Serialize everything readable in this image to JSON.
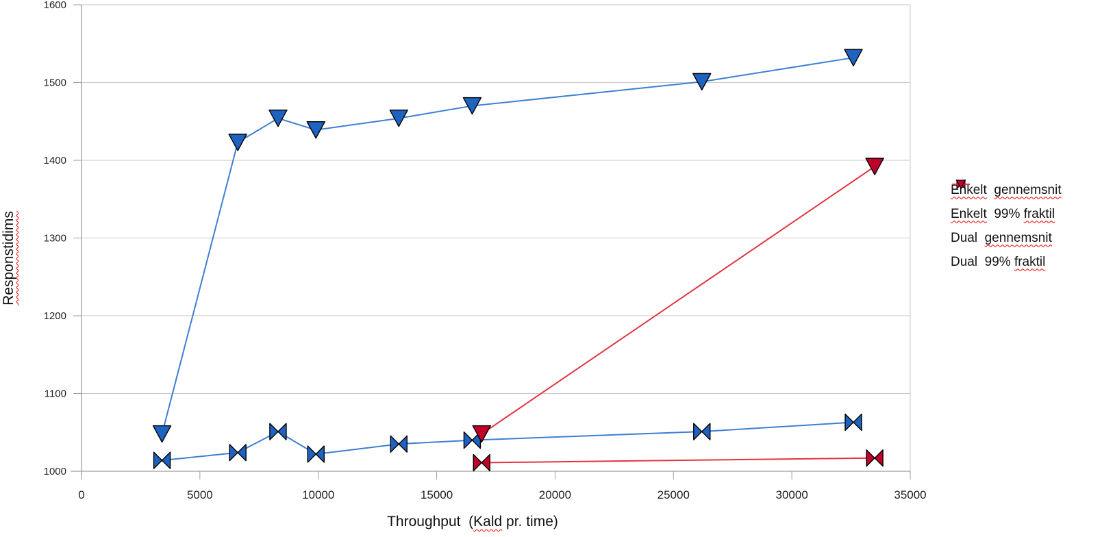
{
  "chart_data": {
    "type": "line",
    "title": "",
    "xlabel": "Throughput  (Kald pr. time)",
    "ylabel": "Responstidims",
    "xlabel_segments": [
      {
        "text": "Throughput  (",
        "wavy": false
      },
      {
        "text": "Kald",
        "wavy": true
      },
      {
        "text": " pr. time)",
        "wavy": false
      }
    ],
    "ylabel_segments": [
      {
        "text": "Responstidims",
        "wavy": true
      }
    ],
    "xlim": [
      0,
      35000
    ],
    "ylim": [
      1000,
      1600
    ],
    "x_ticks": [
      0,
      5000,
      10000,
      15000,
      20000,
      25000,
      30000,
      35000
    ],
    "y_ticks": [
      1000,
      1100,
      1200,
      1300,
      1400,
      1500,
      1600
    ],
    "grid": "horizontal",
    "legend_position": "right",
    "series": [
      {
        "name": "Enkelt gennemsnit",
        "label_segments": [
          {
            "text": "Enkelt",
            "wavy": true
          },
          {
            "text": "  ",
            "wavy": false
          },
          {
            "text": "gennemsnit",
            "wavy": true
          }
        ],
        "marker": "bowtie",
        "marker_color": "#1F63C1",
        "line_color": "#3E7FD2",
        "x": [
          3400,
          6600,
          8300,
          9900,
          13400,
          16500,
          26200,
          32600
        ],
        "y": [
          1014,
          1024,
          1051,
          1022,
          1035,
          1040,
          1051,
          1063
        ]
      },
      {
        "name": "Enkelt 99% fraktil",
        "label_segments": [
          {
            "text": "Enkelt",
            "wavy": true
          },
          {
            "text": "  99% ",
            "wavy": false
          },
          {
            "text": "fraktil",
            "wavy": true
          }
        ],
        "marker": "triangle-down",
        "marker_color": "#1F63C1",
        "line_color": "#3E7FD2",
        "x": [
          3400,
          6600,
          8300,
          9900,
          13400,
          16500,
          26200,
          32600
        ],
        "y": [
          1048,
          1423,
          1454,
          1439,
          1454,
          1470,
          1501,
          1532
        ]
      },
      {
        "name": "Dual gennemsnit",
        "label_segments": [
          {
            "text": "Dual",
            "wavy": false
          },
          {
            "text": "  ",
            "wavy": false
          },
          {
            "text": "gennemsnit",
            "wavy": true
          }
        ],
        "marker": "bowtie",
        "marker_color": "#C00028",
        "line_color": "#E4333F",
        "x": [
          16900,
          33500
        ],
        "y": [
          1011,
          1017
        ]
      },
      {
        "name": "Dual 99% fraktil",
        "label_segments": [
          {
            "text": "Dual",
            "wavy": false
          },
          {
            "text": "  99% ",
            "wavy": false
          },
          {
            "text": "fraktil",
            "wavy": true
          }
        ],
        "marker": "triangle-down",
        "marker_color": "#C00028",
        "line_color": "#E4333F",
        "x": [
          16900,
          33500
        ],
        "y": [
          1048,
          1392
        ]
      }
    ],
    "colors": {
      "background": "#FFFFFF",
      "gridline": "#C9C9C9",
      "axis": "#9E9E9E",
      "tick_label": "#1F1F1F",
      "spellcheck_underline": "#FF0000",
      "text": "#111111"
    }
  }
}
